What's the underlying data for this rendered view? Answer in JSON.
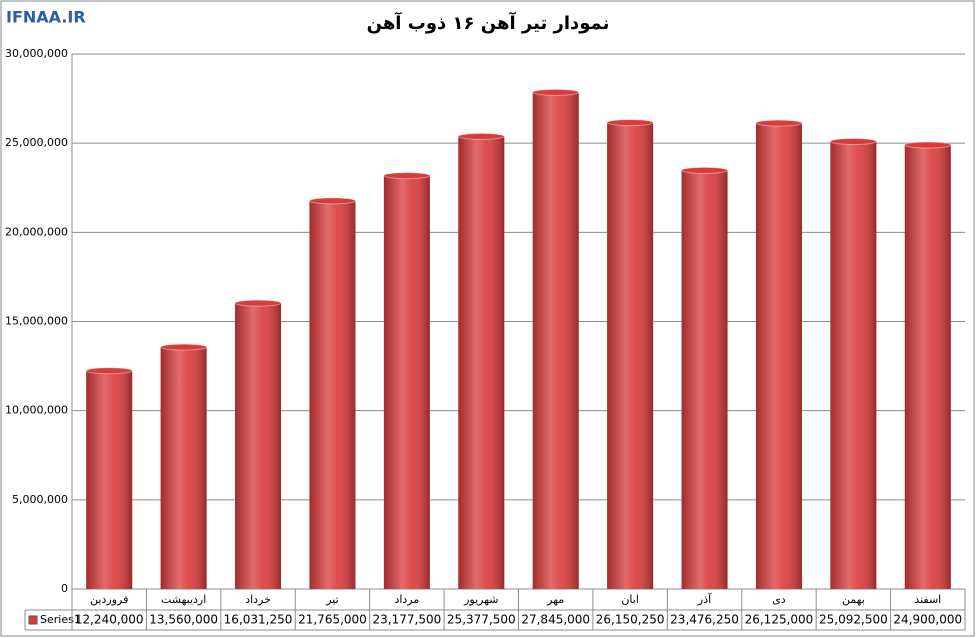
{
  "watermark": "IFNAA.IR",
  "chart_data": {
    "type": "bar",
    "title": "نمودار تیر آهن ۱۶ ذوب آهن",
    "categories": [
      "فروردین",
      "اردیبهشت",
      "خرداد",
      "تیر",
      "مرداد",
      "شهریور",
      "مهر",
      "ابان",
      "آذر",
      "دی",
      "بهمن",
      "اسفند"
    ],
    "series": [
      {
        "name": "Series1",
        "color": "#d93a3a",
        "values": [
          12240000,
          13560000,
          16031250,
          21765000,
          23177500,
          25377500,
          27845000,
          26150250,
          23476250,
          26125000,
          25092500,
          24900000
        ],
        "value_labels": [
          "12,240,000",
          "13,560,000",
          "16,031,250",
          "21,765,000",
          "23,177,500",
          "25,377,500",
          "27,845,000",
          "26,150,250",
          "23,476,250",
          "26,125,000",
          "25,092,500",
          "24,900,000"
        ]
      }
    ],
    "ylim": [
      0,
      30000000
    ],
    "yticks": [
      0,
      {
        "value": 5000000,
        "label": "5,000,000"
      },
      {
        "value": 10000000,
        "label": "10,000,000"
      },
      {
        "value": 15000000,
        "label": "15,000,000"
      },
      {
        "value": 20000000,
        "label": "20,000,000"
      },
      {
        "value": 25000000,
        "label": "25,000,000"
      },
      {
        "value": 30000000,
        "label": "30,000,000"
      }
    ],
    "grid": true,
    "data_table": true
  }
}
